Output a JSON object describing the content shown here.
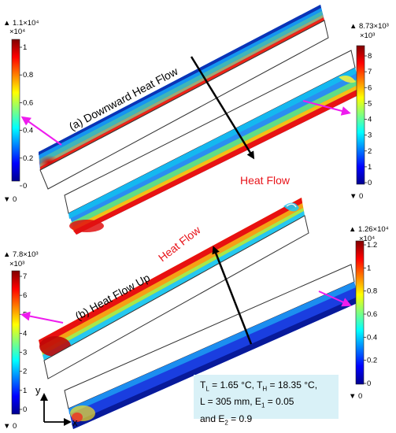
{
  "colorbars": {
    "top_left": {
      "max_label": "▲ 1.1×10⁴",
      "scale": "×10⁴",
      "min_label": "▼ 0",
      "ticks": [
        "1",
        "0.8",
        "0.6",
        "0.4",
        "0.2",
        "0"
      ]
    },
    "top_right": {
      "max_label": "▲ 8.73×10³",
      "scale": "×10³",
      "min_label": "▼ 0",
      "ticks": [
        "8",
        "7",
        "6",
        "5",
        "4",
        "3",
        "2",
        "1",
        "0"
      ]
    },
    "bottom_left": {
      "max_label": "▲ 7.8×10³",
      "scale": "×10³",
      "min_label": "▼ 0",
      "ticks": [
        "7",
        "6",
        "5",
        "4",
        "3",
        "2",
        "1",
        "0"
      ]
    },
    "bottom_right": {
      "max_label": "▲ 1.26×10⁴",
      "scale": "×10⁴",
      "min_label": "▼ 0",
      "ticks": [
        "1.2",
        "1",
        "0.8",
        "0.6",
        "0.4",
        "0.2",
        "0"
      ]
    }
  },
  "labels": {
    "case_a": "(a) Downward Heat Flow",
    "case_b": "(b) Heat Flow Up",
    "heat_flow_a": "Heat Flow",
    "heat_flow_b": "Heat Flow"
  },
  "axes": {
    "y": "y",
    "x": "x"
  },
  "conditions": {
    "TL_symbol": "T",
    "TL_sub": "L",
    "TL_value": " = 1.65 °C, ",
    "TH_symbol": "T",
    "TH_sub": "H",
    "TH_value": " = 18.35 °C,",
    "L_text": "L = 305 mm, ",
    "E1_symbol": "E",
    "E1_sub": "1",
    "E1_value": " = 0.05",
    "E2_prefix": "and ",
    "E2_symbol": "E",
    "E2_sub": "2",
    "E2_value": " = 0.9"
  },
  "colors": {
    "arrow_magenta": "#ee1cee",
    "heat_flow_text": "#e8141b",
    "cond_box_bg": "#d9f1f7"
  }
}
